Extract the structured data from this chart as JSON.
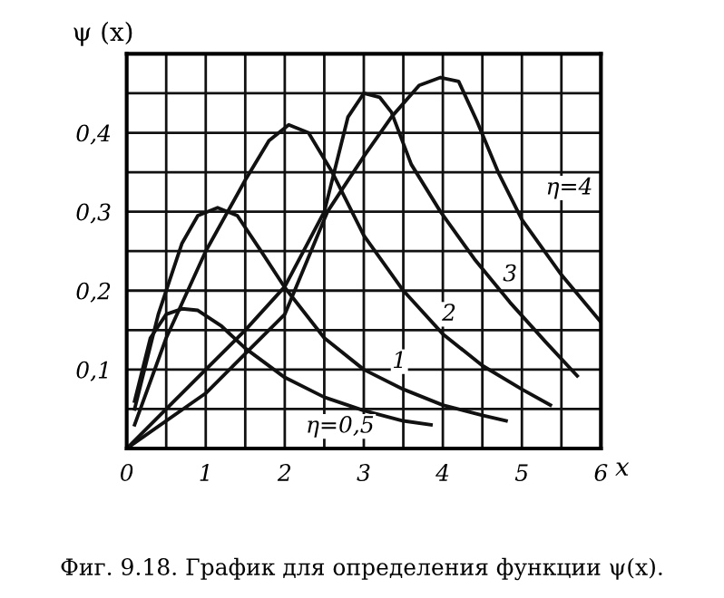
{
  "chart_data": {
    "type": "line",
    "title": "Фиг. 9.18. График для определения функции ψ(x).",
    "xlabel": "x",
    "ylabel": "ψ (x)",
    "series": [
      {
        "color": "#111111",
        "x": [
          0.1,
          0.3,
          0.5,
          0.7,
          0.9,
          1.2,
          1.5,
          2.0,
          2.5,
          3.0,
          3.5,
          3.85
        ],
        "values": [
          0.06,
          0.14,
          0.17,
          0.177,
          0.175,
          0.155,
          0.127,
          0.09,
          0.065,
          0.048,
          0.035,
          0.03
        ]
      },
      {
        "color": "#111111",
        "x": [
          0.1,
          0.4,
          0.7,
          0.9,
          1.15,
          1.4,
          1.7,
          2.0,
          2.5,
          3.0,
          3.5,
          4.0,
          4.5,
          4.8
        ],
        "values": [
          0.05,
          0.17,
          0.26,
          0.295,
          0.305,
          0.295,
          0.25,
          0.204,
          0.14,
          0.1,
          0.075,
          0.055,
          0.042,
          0.035
        ]
      },
      {
        "color": "#111111",
        "x": [
          0.1,
          0.5,
          1.0,
          1.5,
          1.8,
          2.05,
          2.3,
          2.6,
          3.0,
          3.5,
          4.0,
          4.5,
          5.0,
          5.36
        ],
        "values": [
          0.03,
          0.14,
          0.25,
          0.34,
          0.39,
          0.41,
          0.4,
          0.35,
          0.27,
          0.2,
          0.145,
          0.105,
          0.075,
          0.055
        ]
      },
      {
        "color": "#111111",
        "x": [
          0.0,
          0.5,
          1.0,
          1.5,
          2.0,
          2.5,
          2.8,
          3.0,
          3.2,
          3.35,
          3.6,
          3.97,
          4.4,
          4.85,
          5.3,
          5.7
        ],
        "values": [
          0.0,
          0.05,
          0.1,
          0.15,
          0.205,
          0.3,
          0.42,
          0.45,
          0.445,
          0.426,
          0.36,
          0.3,
          0.24,
          0.185,
          0.135,
          0.092
        ]
      },
      {
        "color": "#111111",
        "x": [
          0.0,
          1.0,
          2.0,
          2.54,
          3.0,
          3.35,
          3.7,
          3.97,
          4.2,
          4.43,
          4.7,
          5.0,
          5.5,
          6.0
        ],
        "values": [
          0.0,
          0.07,
          0.17,
          0.3,
          0.37,
          0.42,
          0.46,
          0.47,
          0.465,
          0.415,
          0.35,
          0.29,
          0.22,
          0.16
        ]
      }
    ],
    "annotations": [
      {
        "text": "η=0,5",
        "x": 2.7,
        "y": 0.028
      },
      {
        "text": "1",
        "x": 3.45,
        "y": 0.11
      },
      {
        "text": "2",
        "x": 4.08,
        "y": 0.17
      },
      {
        "text": "3",
        "x": 4.85,
        "y": 0.22
      },
      {
        "text": "η=4",
        "x": 5.6,
        "y": 0.33
      }
    ],
    "xlim": [
      0,
      6
    ],
    "ylim": [
      0,
      0.5
    ],
    "xticks": [
      {
        "value": 0,
        "label": "0"
      },
      {
        "value": 0.5,
        "label": null
      },
      1,
      {
        "value": 1.5,
        "label": null
      },
      2,
      {
        "value": 2.5,
        "label": null
      },
      3,
      {
        "value": 3.5,
        "label": null
      },
      4,
      {
        "value": 4.5,
        "label": null
      },
      5,
      {
        "value": 5.5,
        "label": null
      },
      6
    ],
    "yticks": [
      {
        "value": 0.05,
        "label": null
      },
      {
        "value": 0.1,
        "label": "0,1"
      },
      {
        "value": 0.15,
        "label": null
      },
      {
        "value": 0.2,
        "label": "0,2"
      },
      {
        "value": 0.25,
        "label": null
      },
      {
        "value": 0.3,
        "label": "0,3"
      },
      {
        "value": 0.35,
        "label": null
      },
      {
        "value": 0.4,
        "label": "0,4"
      },
      {
        "value": 0.45,
        "label": null
      },
      {
        "value": 0.5,
        "label": null
      }
    ],
    "grid": true,
    "marker": "none",
    "line_style": "solid"
  }
}
